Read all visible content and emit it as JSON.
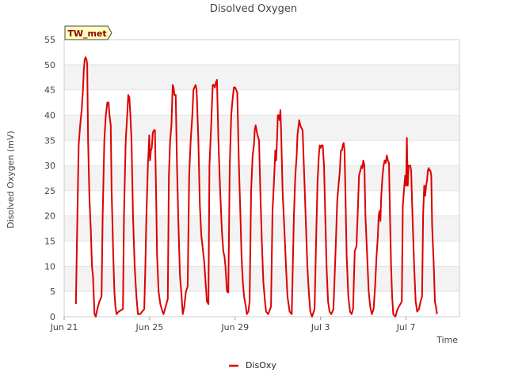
{
  "chart_data": {
    "type": "line",
    "title": "Disolved Oxygen",
    "xlabel": "Time",
    "ylabel": "Disolved Oxygen (mV)",
    "site_label": "TW_met",
    "ylim": [
      0,
      55
    ],
    "yticks": [
      0,
      5,
      10,
      15,
      20,
      25,
      30,
      35,
      40,
      45,
      50,
      55
    ],
    "xlim_days": [
      0,
      18.5
    ],
    "xticks": [
      {
        "day": 0,
        "label": "Jun 21"
      },
      {
        "day": 4,
        "label": "Jun 25"
      },
      {
        "day": 8,
        "label": "Jun 29"
      },
      {
        "day": 12,
        "label": "Jul 3"
      },
      {
        "day": 16,
        "label": "Jul 7"
      }
    ],
    "grid": true,
    "legend_position": "bottom-center",
    "series": [
      {
        "name": "DisOxy",
        "color": "#dd0000",
        "points": [
          [
            0.55,
            2.5
          ],
          [
            0.62,
            20
          ],
          [
            0.68,
            34
          ],
          [
            0.75,
            38
          ],
          [
            0.82,
            41
          ],
          [
            0.88,
            45
          ],
          [
            0.92,
            49
          ],
          [
            0.96,
            51
          ],
          [
            1.0,
            51.5
          ],
          [
            1.05,
            51
          ],
          [
            1.08,
            50
          ],
          [
            1.12,
            35
          ],
          [
            1.18,
            24
          ],
          [
            1.25,
            17
          ],
          [
            1.3,
            10
          ],
          [
            1.35,
            8
          ],
          [
            1.42,
            0.5
          ],
          [
            1.48,
            0
          ],
          [
            1.55,
            1.5
          ],
          [
            1.65,
            3
          ],
          [
            1.75,
            4
          ],
          [
            1.8,
            20
          ],
          [
            1.88,
            35
          ],
          [
            1.95,
            40
          ],
          [
            2.02,
            42.5
          ],
          [
            2.08,
            42.5
          ],
          [
            2.12,
            40
          ],
          [
            2.18,
            38
          ],
          [
            2.22,
            25
          ],
          [
            2.3,
            12
          ],
          [
            2.35,
            5
          ],
          [
            2.4,
            2
          ],
          [
            2.45,
            0.5
          ],
          [
            2.55,
            1
          ],
          [
            2.75,
            1.5
          ],
          [
            2.8,
            20
          ],
          [
            2.88,
            35
          ],
          [
            2.95,
            40
          ],
          [
            3.0,
            44
          ],
          [
            3.05,
            43.5
          ],
          [
            3.1,
            40
          ],
          [
            3.15,
            35
          ],
          [
            3.22,
            20
          ],
          [
            3.3,
            10
          ],
          [
            3.38,
            4
          ],
          [
            3.45,
            0.5
          ],
          [
            3.55,
            0.5
          ],
          [
            3.75,
            1.5
          ],
          [
            3.8,
            10
          ],
          [
            3.85,
            20
          ],
          [
            3.92,
            30
          ],
          [
            3.98,
            36
          ],
          [
            4.02,
            31
          ],
          [
            4.06,
            33
          ],
          [
            4.1,
            33.5
          ],
          [
            4.15,
            36.5
          ],
          [
            4.2,
            37
          ],
          [
            4.25,
            37
          ],
          [
            4.3,
            25
          ],
          [
            4.35,
            12
          ],
          [
            4.42,
            5
          ],
          [
            4.5,
            2.5
          ],
          [
            4.6,
            1
          ],
          [
            4.65,
            0.5
          ],
          [
            4.75,
            2
          ],
          [
            4.85,
            3.5
          ],
          [
            4.9,
            28
          ],
          [
            4.96,
            35
          ],
          [
            5.02,
            38
          ],
          [
            5.08,
            46
          ],
          [
            5.12,
            45.5
          ],
          [
            5.16,
            44
          ],
          [
            5.22,
            44
          ],
          [
            5.28,
            30
          ],
          [
            5.35,
            18
          ],
          [
            5.42,
            8
          ],
          [
            5.48,
            5
          ],
          [
            5.55,
            0.5
          ],
          [
            5.62,
            2
          ],
          [
            5.7,
            5
          ],
          [
            5.78,
            6
          ],
          [
            5.85,
            28
          ],
          [
            5.92,
            35
          ],
          [
            6.0,
            40
          ],
          [
            6.05,
            45
          ],
          [
            6.1,
            45.5
          ],
          [
            6.15,
            46
          ],
          [
            6.2,
            45
          ],
          [
            6.28,
            35
          ],
          [
            6.35,
            22
          ],
          [
            6.42,
            16
          ],
          [
            6.5,
            13
          ],
          [
            6.55,
            11
          ],
          [
            6.6,
            8
          ],
          [
            6.68,
            3
          ],
          [
            6.75,
            2.5
          ],
          [
            6.8,
            30
          ],
          [
            6.88,
            38
          ],
          [
            6.95,
            46
          ],
          [
            7.0,
            46
          ],
          [
            7.05,
            45.5
          ],
          [
            7.1,
            46.5
          ],
          [
            7.15,
            47
          ],
          [
            7.22,
            35
          ],
          [
            7.3,
            25
          ],
          [
            7.38,
            17
          ],
          [
            7.45,
            13
          ],
          [
            7.5,
            12
          ],
          [
            7.55,
            10
          ],
          [
            7.62,
            5
          ],
          [
            7.68,
            4.8
          ],
          [
            7.75,
            30
          ],
          [
            7.82,
            40
          ],
          [
            7.88,
            43
          ],
          [
            7.94,
            45.5
          ],
          [
            8.0,
            45.5
          ],
          [
            8.05,
            45
          ],
          [
            8.1,
            44.5
          ],
          [
            8.18,
            30
          ],
          [
            8.25,
            20
          ],
          [
            8.3,
            12
          ],
          [
            8.36,
            7
          ],
          [
            8.42,
            4
          ],
          [
            8.5,
            2
          ],
          [
            8.55,
            0.5
          ],
          [
            8.62,
            1
          ],
          [
            8.68,
            3
          ],
          [
            8.75,
            25
          ],
          [
            8.82,
            32
          ],
          [
            8.88,
            34
          ],
          [
            8.92,
            37
          ],
          [
            8.96,
            38
          ],
          [
            9.0,
            37
          ],
          [
            9.05,
            36
          ],
          [
            9.12,
            35
          ],
          [
            9.18,
            25
          ],
          [
            9.25,
            15
          ],
          [
            9.32,
            7
          ],
          [
            9.4,
            3
          ],
          [
            9.45,
            1
          ],
          [
            9.55,
            0.5
          ],
          [
            9.68,
            2
          ],
          [
            9.75,
            21
          ],
          [
            9.82,
            27
          ],
          [
            9.88,
            33
          ],
          [
            9.92,
            31
          ],
          [
            9.96,
            35
          ],
          [
            10.0,
            40
          ],
          [
            10.04,
            40
          ],
          [
            10.08,
            39
          ],
          [
            10.12,
            41
          ],
          [
            10.16,
            36
          ],
          [
            10.22,
            25
          ],
          [
            10.3,
            18
          ],
          [
            10.38,
            10
          ],
          [
            10.45,
            4
          ],
          [
            10.55,
            1
          ],
          [
            10.65,
            0.5
          ],
          [
            10.75,
            20
          ],
          [
            10.82,
            28
          ],
          [
            10.88,
            32
          ],
          [
            10.92,
            36
          ],
          [
            10.96,
            37.5
          ],
          [
            11.0,
            39
          ],
          [
            11.05,
            38
          ],
          [
            11.1,
            37.5
          ],
          [
            11.16,
            37
          ],
          [
            11.22,
            30
          ],
          [
            11.3,
            20
          ],
          [
            11.38,
            10
          ],
          [
            11.45,
            5
          ],
          [
            11.52,
            1
          ],
          [
            11.6,
            0
          ],
          [
            11.72,
            1.5
          ],
          [
            11.8,
            17
          ],
          [
            11.86,
            27
          ],
          [
            11.92,
            32
          ],
          [
            11.96,
            34
          ],
          [
            12.0,
            33.5
          ],
          [
            12.04,
            34
          ],
          [
            12.1,
            34
          ],
          [
            12.16,
            30
          ],
          [
            12.22,
            20
          ],
          [
            12.28,
            10
          ],
          [
            12.35,
            3
          ],
          [
            12.42,
            1
          ],
          [
            12.5,
            0.5
          ],
          [
            12.6,
            1.5
          ],
          [
            12.7,
            13
          ],
          [
            12.78,
            23
          ],
          [
            12.84,
            26
          ],
          [
            12.9,
            29
          ],
          [
            12.95,
            33
          ],
          [
            13.0,
            33
          ],
          [
            13.04,
            34
          ],
          [
            13.08,
            34.5
          ],
          [
            13.12,
            33
          ],
          [
            13.16,
            25
          ],
          [
            13.22,
            12
          ],
          [
            13.3,
            4
          ],
          [
            13.38,
            1
          ],
          [
            13.45,
            0.5
          ],
          [
            13.52,
            1.5
          ],
          [
            13.6,
            13
          ],
          [
            13.68,
            14
          ],
          [
            13.75,
            22
          ],
          [
            13.8,
            28
          ],
          [
            13.86,
            29
          ],
          [
            13.92,
            30
          ],
          [
            13.96,
            29.5
          ],
          [
            14.0,
            31
          ],
          [
            14.05,
            30
          ],
          [
            14.1,
            20
          ],
          [
            14.18,
            12
          ],
          [
            14.25,
            5
          ],
          [
            14.32,
            2
          ],
          [
            14.4,
            0.5
          ],
          [
            14.48,
            1.5
          ],
          [
            14.55,
            6
          ],
          [
            14.62,
            12
          ],
          [
            14.68,
            16
          ],
          [
            14.72,
            20
          ],
          [
            14.76,
            21
          ],
          [
            14.8,
            19
          ],
          [
            14.84,
            24
          ],
          [
            14.9,
            28
          ],
          [
            14.95,
            30
          ],
          [
            15.0,
            31
          ],
          [
            15.05,
            30.5
          ],
          [
            15.1,
            32
          ],
          [
            15.15,
            31
          ],
          [
            15.2,
            30.5
          ],
          [
            15.25,
            20
          ],
          [
            15.3,
            10
          ],
          [
            15.35,
            4
          ],
          [
            15.4,
            0.5
          ],
          [
            15.5,
            0
          ],
          [
            15.6,
            1.5
          ],
          [
            15.8,
            3
          ],
          [
            15.85,
            22
          ],
          [
            15.92,
            26
          ],
          [
            15.96,
            28
          ],
          [
            16.0,
            26
          ],
          [
            16.04,
            35.5
          ],
          [
            16.08,
            26
          ],
          [
            16.12,
            30
          ],
          [
            16.16,
            30
          ],
          [
            16.2,
            30
          ],
          [
            16.24,
            29
          ],
          [
            16.3,
            20
          ],
          [
            16.38,
            10
          ],
          [
            16.45,
            3
          ],
          [
            16.52,
            1
          ],
          [
            16.6,
            1.5
          ],
          [
            16.68,
            3
          ],
          [
            16.75,
            4
          ],
          [
            16.8,
            20
          ],
          [
            16.85,
            26
          ],
          [
            16.9,
            24
          ],
          [
            16.94,
            26
          ],
          [
            16.98,
            27
          ],
          [
            17.02,
            29
          ],
          [
            17.06,
            29.5
          ],
          [
            17.1,
            29
          ],
          [
            17.14,
            29
          ],
          [
            17.18,
            28
          ],
          [
            17.22,
            18
          ],
          [
            17.3,
            10
          ],
          [
            17.35,
            3
          ],
          [
            17.4,
            2
          ],
          [
            17.45,
            0.5
          ]
        ]
      }
    ]
  }
}
